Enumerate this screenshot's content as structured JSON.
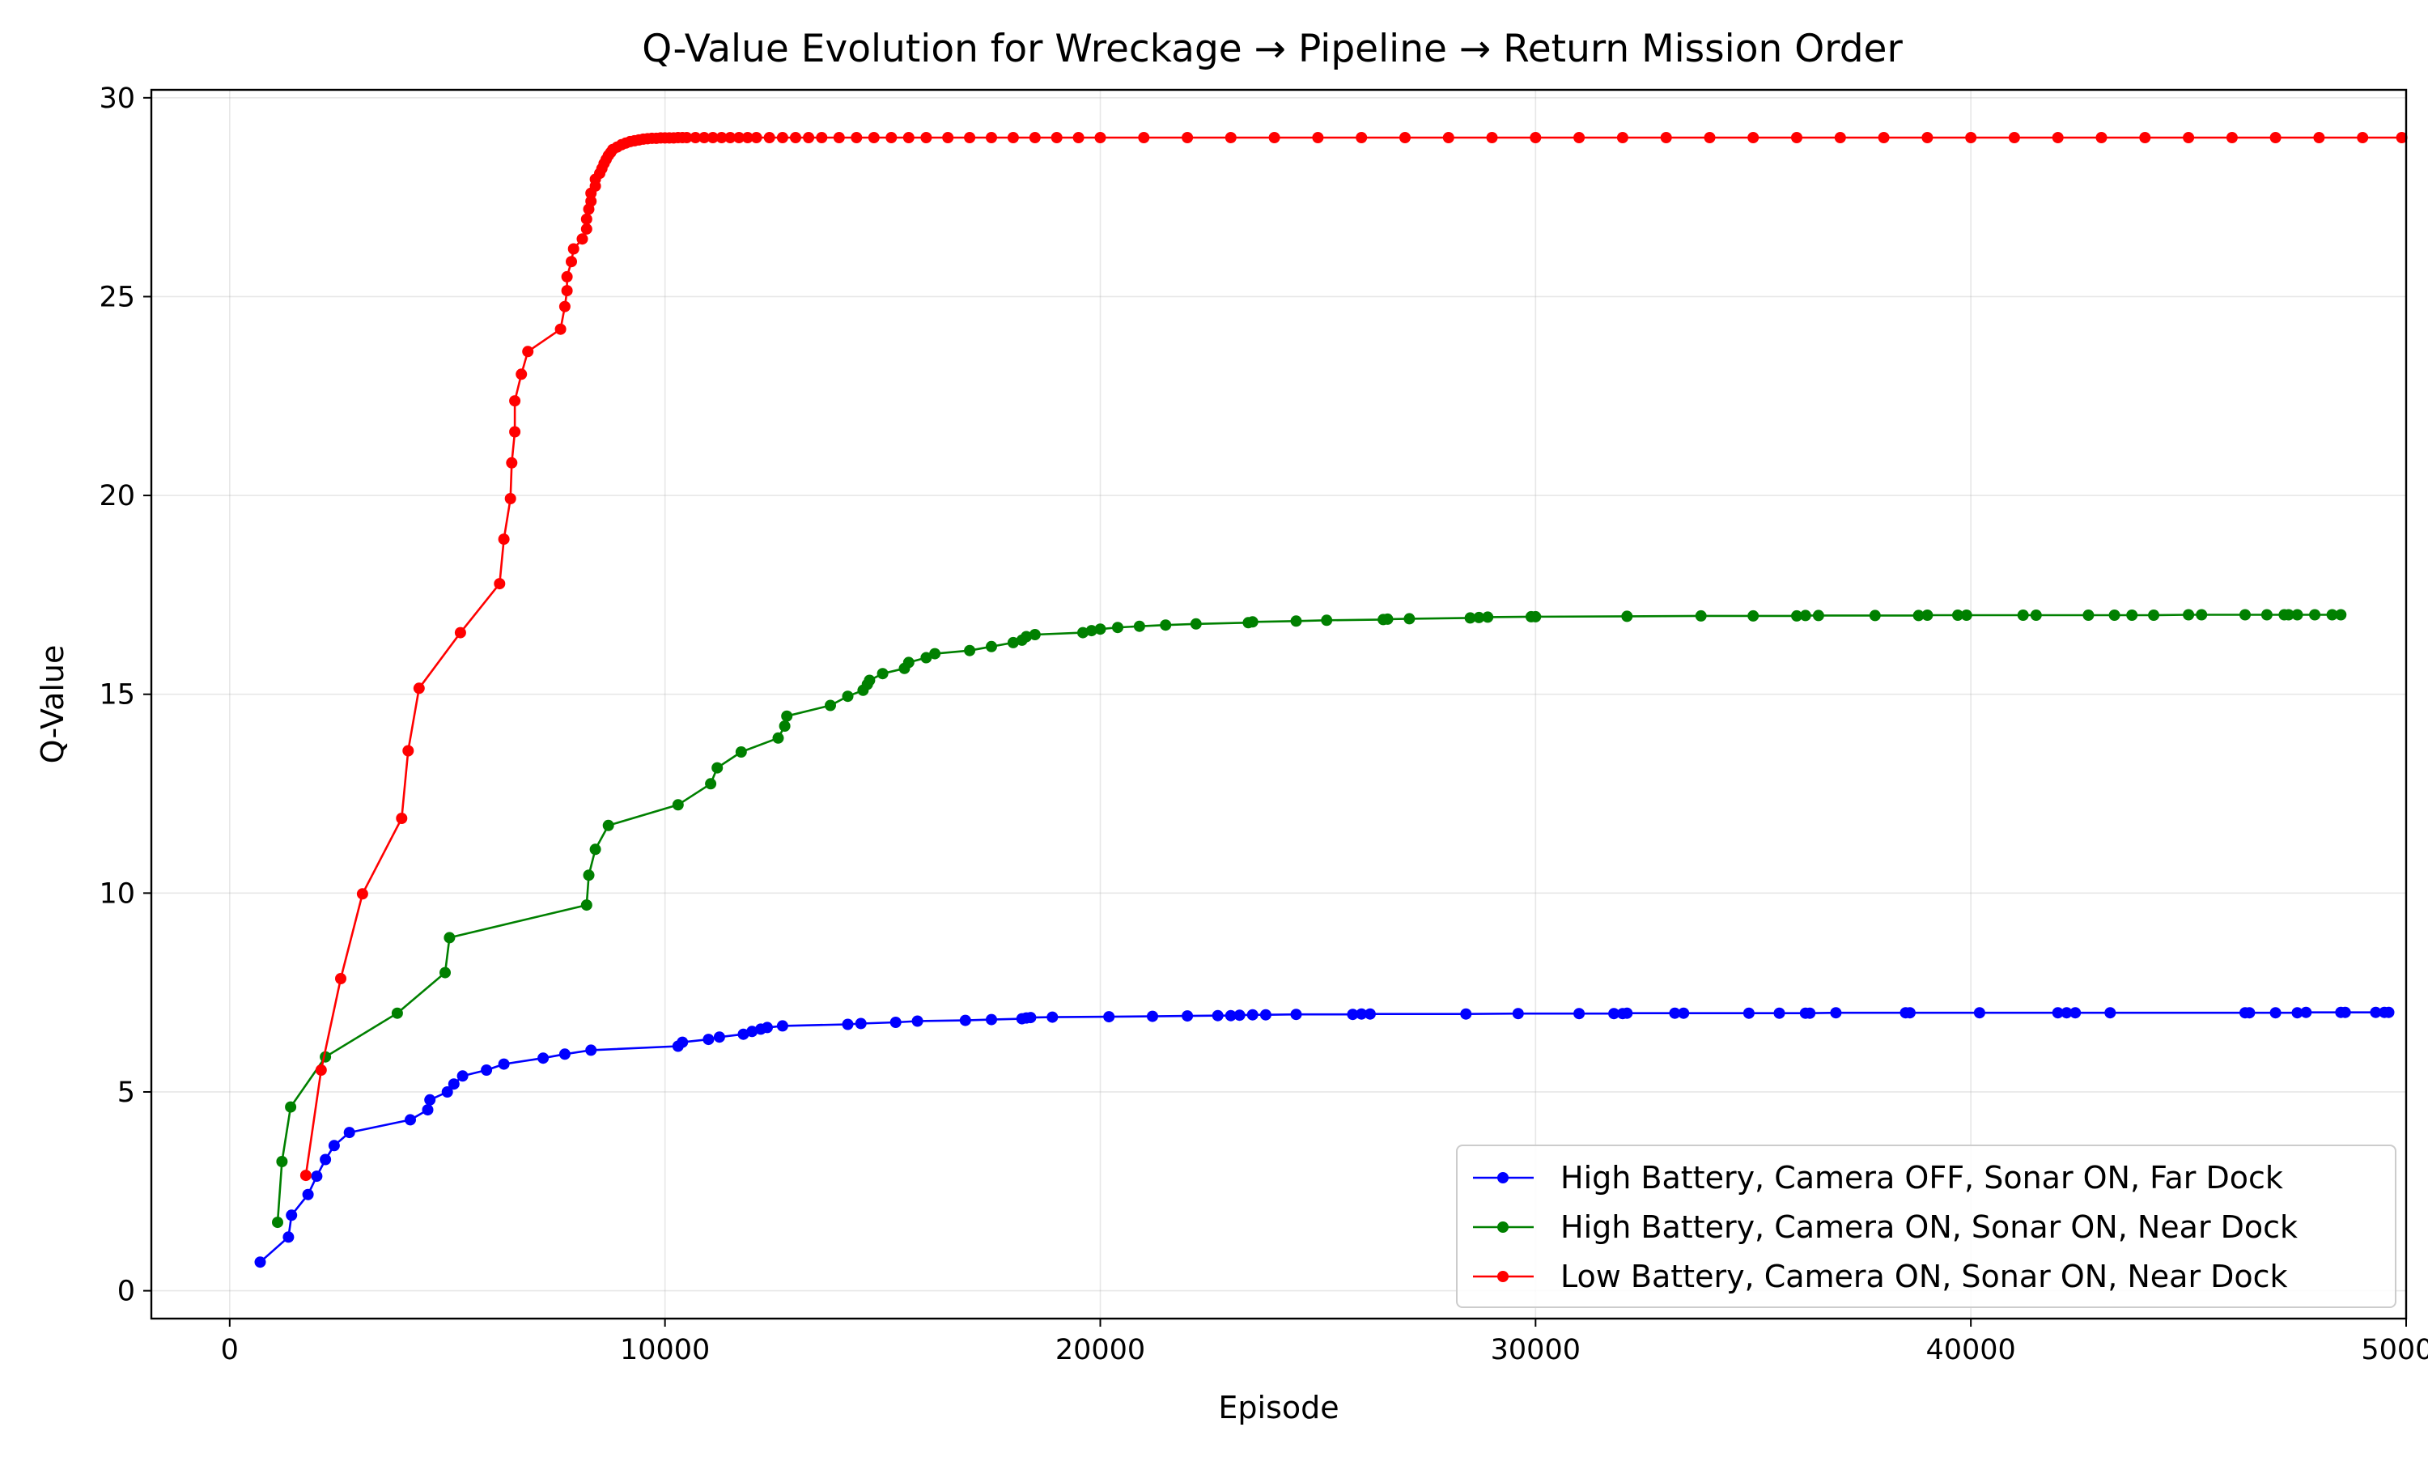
{
  "chart_data": {
    "type": "line",
    "title": "Q-Value Evolution for Wreckage → Pipeline → Return Mission Order",
    "xlabel": "Episode",
    "ylabel": "Q-Value",
    "xlim": [
      -1800,
      50000
    ],
    "ylim": [
      -0.7,
      30.2
    ],
    "xticks": [
      0,
      10000,
      20000,
      30000,
      40000,
      50000
    ],
    "xtick_labels": [
      "0",
      "10000",
      "20000",
      "30000",
      "40000",
      "50000"
    ],
    "yticks": [
      0,
      5,
      10,
      15,
      20,
      25,
      30
    ],
    "ytick_labels": [
      "0",
      "5",
      "10",
      "15",
      "20",
      "25",
      "30"
    ],
    "grid": true,
    "legend_position": "lower-right",
    "series": [
      {
        "name": "High Battery, Camera OFF, Sonar ON, Far Dock",
        "color": "#0000ff",
        "x": [
          700,
          1350,
          1420,
          1800,
          2000,
          2200,
          2400,
          2750,
          4150,
          4550,
          4600,
          5000,
          5150,
          5350,
          5900,
          6300,
          7200,
          7700,
          8300,
          10300,
          10400,
          11000,
          11250,
          11800,
          12000,
          12200,
          12350,
          12700,
          14200,
          14500,
          15300,
          15800,
          16900,
          17500,
          18200,
          18300,
          18400,
          18900,
          20200,
          21200,
          22000,
          22700,
          23000,
          23200,
          23500,
          23800,
          24500,
          25800,
          26000,
          26200,
          28400,
          29600,
          31000,
          31800,
          32000,
          32100,
          33200,
          33400,
          34900,
          35600,
          36200,
          36300,
          36900,
          38500,
          38600,
          40200,
          42000,
          42200,
          42400,
          43200,
          46300,
          46400,
          47000,
          47500,
          47700,
          48500,
          48600,
          49300,
          49500,
          49600
        ],
        "y": [
          0.72,
          1.35,
          1.9,
          2.42,
          2.88,
          3.3,
          3.65,
          3.98,
          4.3,
          4.55,
          4.8,
          5.0,
          5.2,
          5.4,
          5.55,
          5.7,
          5.85,
          5.95,
          6.05,
          6.15,
          6.25,
          6.32,
          6.38,
          6.45,
          6.52,
          6.58,
          6.62,
          6.66,
          6.7,
          6.72,
          6.75,
          6.78,
          6.8,
          6.82,
          6.84,
          6.86,
          6.87,
          6.88,
          6.89,
          6.9,
          6.91,
          6.92,
          6.92,
          6.93,
          6.94,
          6.94,
          6.95,
          6.95,
          6.96,
          6.96,
          6.96,
          6.97,
          6.97,
          6.97,
          6.97,
          6.98,
          6.98,
          6.98,
          6.98,
          6.98,
          6.98,
          6.98,
          6.99,
          6.99,
          6.99,
          6.99,
          6.99,
          6.99,
          6.99,
          6.99,
          6.99,
          6.99,
          6.99,
          6.99,
          7.0,
          7.0,
          7.0,
          7.0,
          7.0,
          7.0
        ]
      },
      {
        "name": "High Battery, Camera ON, Sonar ON, Near Dock",
        "color": "#008000",
        "x": [
          1100,
          1200,
          1400,
          2200,
          3850,
          4950,
          5050,
          8200,
          8250,
          8400,
          8700,
          10300,
          11050,
          11200,
          11750,
          12600,
          12750,
          12800,
          13800,
          14200,
          14550,
          14650,
          14700,
          15000,
          15500,
          15600,
          16000,
          16200,
          17000,
          17500,
          18000,
          18200,
          18300,
          18500,
          19600,
          19800,
          20000,
          20400,
          20900,
          21500,
          22200,
          23400,
          23500,
          24500,
          25200,
          26500,
          26600,
          27100,
          28500,
          28700,
          28900,
          29900,
          30000,
          32100,
          33800,
          35000,
          36000,
          36200,
          36500,
          37800,
          38800,
          39000,
          39700,
          39900,
          41200,
          41500,
          42700,
          43300,
          43700,
          44200,
          45000,
          45300,
          46300,
          46800,
          47200,
          47300,
          47500,
          47900,
          48300,
          48500
        ],
        "y": [
          1.72,
          3.25,
          4.62,
          5.88,
          6.98,
          8.0,
          8.88,
          9.7,
          10.45,
          11.1,
          11.7,
          12.22,
          12.75,
          13.15,
          13.55,
          13.9,
          14.2,
          14.45,
          14.72,
          14.95,
          15.1,
          15.25,
          15.35,
          15.52,
          15.65,
          15.8,
          15.92,
          16.02,
          16.1,
          16.2,
          16.3,
          16.36,
          16.45,
          16.5,
          16.55,
          16.6,
          16.64,
          16.68,
          16.71,
          16.74,
          16.77,
          16.8,
          16.82,
          16.84,
          16.86,
          16.88,
          16.89,
          16.9,
          16.92,
          16.93,
          16.94,
          16.95,
          16.95,
          16.96,
          16.97,
          16.97,
          16.97,
          16.98,
          16.98,
          16.98,
          16.98,
          16.99,
          16.99,
          16.99,
          16.99,
          16.99,
          16.99,
          16.99,
          16.99,
          16.99,
          17.0,
          17.0,
          17.0,
          17.0,
          17.0,
          17.0,
          17.0,
          17.0,
          17.0,
          17.0
        ]
      },
      {
        "name": "Low Battery, Camera ON, Sonar ON, Near Dock",
        "color": "#ff0000",
        "x": [
          1750,
          2100,
          2550,
          3050,
          3950,
          4100,
          4350,
          5300,
          6200,
          6300,
          6450,
          6480,
          6550,
          6550,
          6700,
          6850,
          7600,
          7700,
          7750,
          7750,
          7850,
          7900,
          8100,
          8200,
          8200,
          8250,
          8300,
          8300,
          8400,
          8400,
          8500,
          8550,
          8600,
          8650,
          8700,
          8750,
          8800,
          8900,
          9000,
          9100,
          9200,
          9300,
          9400,
          9500,
          9600,
          9700,
          9800,
          9900,
          10000,
          10100,
          10200,
          10300,
          10400,
          10500,
          10700,
          10900,
          11100,
          11300,
          11500,
          11700,
          11900,
          12100,
          12400,
          12700,
          13000,
          13300,
          13600,
          14000,
          14400,
          14800,
          15200,
          15600,
          16000,
          16500,
          17000,
          17500,
          18000,
          18500,
          19000,
          19500,
          20000,
          21000,
          22000,
          23000,
          24000,
          25000,
          26000,
          27000,
          28000,
          29000,
          30000,
          31000,
          32000,
          33000,
          34000,
          35000,
          36000,
          37000,
          38000,
          39000,
          40000,
          41000,
          42000,
          43000,
          44000,
          45000,
          46000,
          47000,
          48000,
          49000,
          49900
        ],
        "y": [
          2.9,
          5.55,
          7.85,
          9.98,
          11.88,
          13.58,
          15.15,
          16.55,
          17.78,
          18.9,
          19.92,
          20.82,
          21.6,
          22.38,
          23.05,
          23.62,
          24.18,
          24.75,
          25.15,
          25.5,
          25.88,
          26.2,
          26.45,
          26.7,
          26.95,
          27.2,
          27.4,
          27.6,
          27.78,
          27.95,
          28.1,
          28.22,
          28.35,
          28.45,
          28.55,
          28.62,
          28.7,
          28.76,
          28.82,
          28.86,
          28.9,
          28.92,
          28.94,
          28.96,
          28.97,
          28.98,
          28.98,
          28.99,
          28.99,
          28.99,
          28.99,
          29.0,
          29.0,
          29.0,
          29.0,
          29.0,
          29.0,
          29.0,
          29.0,
          29.0,
          29.0,
          29.0,
          29.0,
          29.0,
          29.0,
          29.0,
          29.0,
          29.0,
          29.0,
          29.0,
          29.0,
          29.0,
          29.0,
          29.0,
          29.0,
          29.0,
          29.0,
          29.0,
          29.0,
          29.0,
          29.0,
          29.0,
          29.0,
          29.0,
          29.0,
          29.0,
          29.0,
          29.0,
          29.0,
          29.0,
          29.0,
          29.0,
          29.0,
          29.0,
          29.0,
          29.0,
          29.0,
          29.0,
          29.0,
          29.0,
          29.0,
          29.0,
          29.0,
          29.0,
          29.0,
          29.0,
          29.0,
          29.0,
          29.0,
          29.0,
          29.0
        ]
      }
    ]
  }
}
